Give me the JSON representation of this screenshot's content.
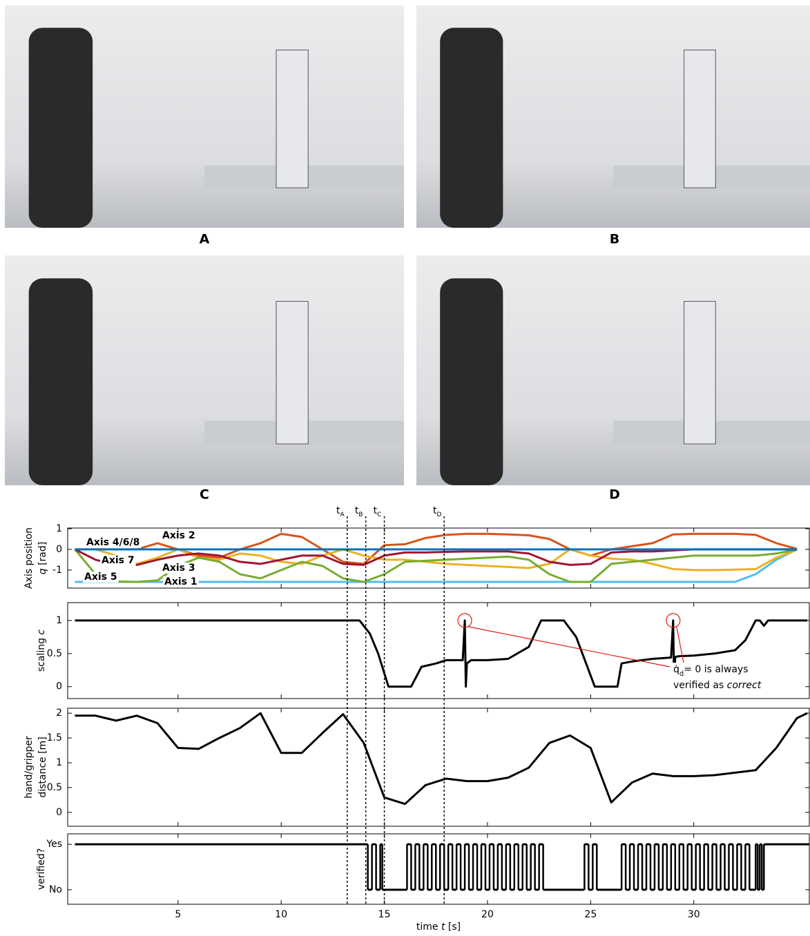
{
  "photos": [
    {
      "label": "A"
    },
    {
      "label": "B"
    },
    {
      "label": "C"
    },
    {
      "label": "D"
    }
  ],
  "time_markers": [
    {
      "value": 13.2,
      "label": "t",
      "subscript": "A"
    },
    {
      "value": 14.1,
      "label": "t",
      "subscript": "B"
    },
    {
      "value": 15.0,
      "label": "t",
      "subscript": "C"
    },
    {
      "value": 17.9,
      "label": "t",
      "subscript": "D"
    }
  ],
  "chart_data": [
    {
      "type": "line",
      "ylabel": [
        [
          {
            "text": "Axis position"
          }
        ],
        [
          {
            "text": "q",
            "italic": true
          },
          {
            "text": " [rad]"
          }
        ]
      ],
      "xlim": [
        -0.35,
        35.6
      ],
      "xticks": [
        5,
        10,
        15,
        20,
        25,
        30
      ],
      "ylim": [
        -1.87,
        1.03
      ],
      "yticks": [
        -1,
        0,
        1
      ],
      "x": [
        0,
        1,
        2,
        3,
        4,
        5,
        6,
        7,
        8,
        9,
        10,
        11,
        12,
        13,
        14,
        15,
        16,
        17,
        18,
        19,
        20,
        21,
        22,
        23,
        24,
        25,
        26,
        27,
        28,
        29,
        30,
        31,
        32,
        33,
        34,
        35
      ],
      "series": [
        {
          "name": "Axis 1",
          "color": "#4dbeee",
          "values": [
            -1.57,
            -1.57,
            -1.57,
            -1.57,
            -1.57,
            -1.57,
            -1.57,
            -1.57,
            -1.57,
            -1.57,
            -1.57,
            -1.57,
            -1.57,
            -1.57,
            -1.57,
            -1.57,
            -1.57,
            -1.57,
            -1.57,
            -1.57,
            -1.57,
            -1.57,
            -1.57,
            -1.57,
            -1.57,
            -1.57,
            -1.57,
            -1.57,
            -1.57,
            -1.57,
            -1.57,
            -1.57,
            -1.57,
            -1.2,
            -0.5,
            0
          ]
        },
        {
          "name": "Axis 2",
          "color": "#d95319",
          "values": [
            0,
            0,
            0,
            0,
            0.3,
            0,
            -0.3,
            -0.4,
            0,
            0.3,
            0.75,
            0.6,
            0,
            -0.6,
            -0.7,
            0.2,
            0.25,
            0.55,
            0.7,
            0.75,
            0.75,
            0.72,
            0.68,
            0.5,
            0,
            -0.3,
            0,
            0.15,
            0.3,
            0.72,
            0.75,
            0.75,
            0.75,
            0.7,
            0.3,
            0.02
          ]
        },
        {
          "name": "Axis 3",
          "color": "#edb120",
          "values": [
            0,
            0,
            -0.3,
            -0.7,
            -0.4,
            0,
            -0.4,
            -0.5,
            -0.2,
            -0.3,
            -0.6,
            -0.7,
            -0.3,
            0,
            -0.3,
            -0.5,
            -0.5,
            -0.6,
            -0.7,
            -0.75,
            -0.8,
            -0.85,
            -0.9,
            -0.7,
            0,
            -0.3,
            -0.45,
            -0.5,
            -0.7,
            -0.95,
            -1.0,
            -1.0,
            -0.98,
            -0.95,
            -0.4,
            -0.02
          ]
        },
        {
          "name": "Axis 5",
          "color": "#77ac30",
          "values": [
            0,
            -1.2,
            -1.55,
            -1.57,
            -1.5,
            -0.8,
            -0.4,
            -0.6,
            -1.2,
            -1.4,
            -1.0,
            -0.6,
            -0.8,
            -1.4,
            -1.57,
            -1.2,
            -0.6,
            -0.55,
            -0.5,
            -0.45,
            -0.4,
            -0.35,
            -0.5,
            -1.2,
            -1.57,
            -1.57,
            -0.7,
            -0.6,
            -0.5,
            -0.4,
            -0.3,
            -0.3,
            -0.3,
            -0.3,
            -0.2,
            -0.02
          ]
        },
        {
          "name": "Axis 7",
          "color": "#a2142f",
          "values": [
            0,
            -0.5,
            -0.75,
            -0.75,
            -0.5,
            -0.3,
            -0.2,
            -0.3,
            -0.6,
            -0.7,
            -0.5,
            -0.3,
            -0.3,
            -0.7,
            -0.75,
            -0.3,
            -0.15,
            -0.15,
            -0.12,
            -0.1,
            -0.1,
            -0.1,
            -0.2,
            -0.6,
            -0.75,
            -0.7,
            -0.15,
            -0.1,
            -0.1,
            -0.05,
            0,
            0,
            0,
            0,
            0,
            0
          ]
        },
        {
          "name": "Axis 4/6/8",
          "color": "#0072bd",
          "values": [
            0,
            0,
            0,
            0,
            0,
            0,
            0,
            0,
            0,
            0,
            0,
            0,
            0,
            0,
            0,
            0,
            0,
            0,
            0,
            0,
            0,
            0,
            0,
            0,
            0,
            0,
            0,
            0,
            0,
            0,
            0,
            0,
            0,
            0,
            0,
            0
          ]
        }
      ]
    },
    {
      "type": "line",
      "ylabel": [
        [
          {
            "text": "scaling "
          },
          {
            "text": "c",
            "italic": true
          }
        ]
      ],
      "xlim": [
        -0.35,
        35.6
      ],
      "xticks": [
        5,
        10,
        15,
        20,
        25,
        30
      ],
      "ylim": [
        -0.18,
        1.27
      ],
      "yticks": [
        0,
        0.5,
        1
      ],
      "x": [
        0,
        13.5,
        13.8,
        14.3,
        14.7,
        15.0,
        15.2,
        16.0,
        16.3,
        16.8,
        17.5,
        18.0,
        18.8,
        18.9,
        18.95,
        19.0,
        19.2,
        20,
        21,
        22,
        22.6,
        23.7,
        24.3,
        25.2,
        25.5,
        26.3,
        26.5,
        27,
        28,
        28.9,
        29.0,
        29.05,
        29.1,
        29.3,
        30,
        31,
        32,
        32.5,
        33,
        33.2,
        33.4,
        33.6,
        35.5
      ],
      "series": [
        {
          "color": "#000000",
          "values": [
            1,
            1,
            1,
            0.8,
            0.5,
            0.2,
            0,
            0,
            0,
            0.3,
            0.35,
            0.4,
            0.4,
            1,
            0,
            0.35,
            0.4,
            0.4,
            0.42,
            0.6,
            1,
            1,
            0.75,
            0,
            0,
            0,
            0.35,
            0.38,
            0.42,
            0.44,
            1,
            0,
            0.45,
            0.46,
            0.47,
            0.5,
            0.55,
            0.7,
            1,
            1,
            0.92,
            1,
            1
          ]
        }
      ],
      "annotation": {
        "line1": [
          {
            "text": "q̇"
          },
          {
            "text": "d",
            "subscript": true
          },
          {
            "text": "= 0 is always"
          }
        ],
        "line2": [
          {
            "text": "verified as "
          },
          {
            "text": "correct",
            "italic": true
          }
        ],
        "color": "#e31a1c"
      }
    },
    {
      "type": "line",
      "ylabel": [
        [
          {
            "text": "hand/gripper"
          }
        ],
        [
          {
            "text": "distance [m]"
          }
        ]
      ],
      "xlim": [
        -0.35,
        35.6
      ],
      "xticks": [
        5,
        10,
        15,
        20,
        25,
        30
      ],
      "ylim": [
        -0.28,
        2.1
      ],
      "yticks": [
        0,
        0.5,
        1,
        1.5,
        2
      ],
      "x": [
        0,
        1,
        2,
        3,
        4,
        5,
        6,
        7,
        8,
        9,
        10,
        11,
        12,
        13,
        14,
        15,
        16,
        17,
        18,
        19,
        20,
        21,
        22,
        23,
        24,
        25,
        26,
        27,
        28,
        29,
        30,
        31,
        32,
        33,
        34,
        35,
        35.5
      ],
      "series": [
        {
          "color": "#000000",
          "values": [
            1.95,
            1.95,
            1.85,
            1.95,
            1.8,
            1.3,
            1.28,
            1.5,
            1.7,
            2.0,
            1.2,
            1.2,
            1.6,
            1.98,
            1.4,
            0.3,
            0.17,
            0.55,
            0.68,
            0.63,
            0.63,
            0.7,
            0.9,
            1.4,
            1.55,
            1.3,
            0.2,
            0.6,
            0.78,
            0.73,
            0.73,
            0.75,
            0.8,
            0.85,
            1.3,
            1.9,
            2.0
          ]
        }
      ]
    },
    {
      "type": "step",
      "ylabel": [
        [
          {
            "text": "verified?"
          }
        ]
      ],
      "xlabel": [
        {
          "text": "time "
        },
        {
          "text": "t",
          "italic": true
        },
        {
          "text": " [s]"
        }
      ],
      "xlim": [
        -0.35,
        35.6
      ],
      "xticks": [
        5,
        10,
        15,
        20,
        25,
        30
      ],
      "ylim": [
        -0.32,
        1.23
      ],
      "yticks": [
        {
          "value": 0,
          "label": "No"
        },
        {
          "value": 1,
          "label": "Yes"
        }
      ],
      "x": [
        0,
        14.2,
        14.4,
        14.6,
        14.8,
        14.9,
        16.1,
        16.3,
        16.5,
        16.7,
        16.9,
        17.1,
        17.3,
        17.5,
        17.7,
        17.9,
        18.1,
        18.3,
        18.5,
        18.7,
        18.9,
        19.1,
        19.3,
        19.5,
        19.7,
        19.9,
        20.1,
        20.3,
        20.5,
        20.7,
        20.9,
        21.1,
        21.3,
        21.5,
        21.7,
        21.9,
        22.1,
        22.3,
        22.5,
        22.7,
        24.7,
        24.9,
        25.1,
        25.3,
        26.5,
        26.7,
        26.9,
        27.1,
        27.3,
        27.5,
        27.7,
        27.9,
        28.1,
        28.3,
        28.5,
        28.7,
        28.9,
        29.1,
        29.3,
        29.5,
        29.7,
        29.9,
        30.1,
        30.3,
        30.5,
        30.7,
        30.9,
        31.1,
        31.3,
        31.5,
        31.7,
        31.9,
        32.1,
        32.3,
        32.5,
        32.7,
        33.0,
        33.1,
        33.2,
        33.3,
        33.4,
        35.6
      ],
      "series": [
        {
          "color": "#000000",
          "values": [
            1,
            0,
            1,
            0,
            1,
            0,
            1,
            0,
            1,
            0,
            1,
            0,
            1,
            0,
            1,
            0,
            1,
            0,
            1,
            0,
            1,
            0,
            1,
            0,
            1,
            0,
            1,
            0,
            1,
            0,
            1,
            0,
            1,
            0,
            1,
            0,
            1,
            0,
            1,
            0,
            1,
            0,
            1,
            0,
            1,
            0,
            1,
            0,
            1,
            0,
            1,
            0,
            1,
            0,
            1,
            0,
            1,
            0,
            1,
            0,
            1,
            0,
            1,
            0,
            1,
            0,
            1,
            0,
            1,
            0,
            1,
            0,
            1,
            0,
            1,
            0,
            1,
            0,
            1,
            0,
            1,
            1
          ]
        }
      ]
    }
  ]
}
